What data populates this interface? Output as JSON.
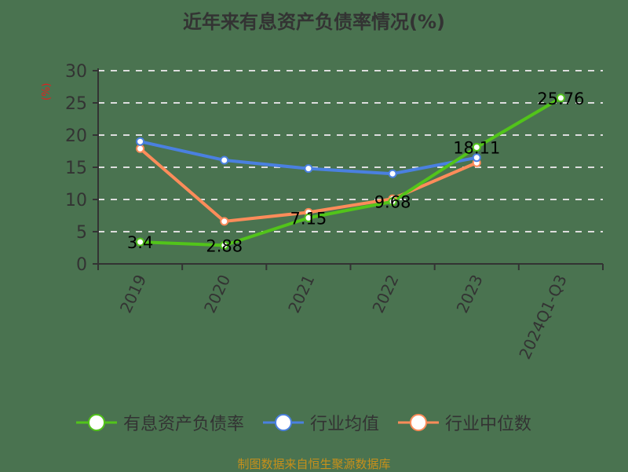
{
  "title": "近年来有息资产负债率情况(%)",
  "y_unit": "(%)",
  "legend": [
    {
      "label": "有息资产负债率",
      "color": "#52c41a"
    },
    {
      "label": "行业均值",
      "color": "#4a80e0"
    },
    {
      "label": "行业中位数",
      "color": "#ff8c5a"
    }
  ],
  "source": "制图数据来自恒生聚源数据库",
  "chart_data": {
    "type": "line",
    "title": "近年来有息资产负债率情况(%)",
    "xlabel": "",
    "ylabel": "(%)",
    "categories": [
      "2019",
      "2020",
      "2021",
      "2022",
      "2023",
      "2024Q1-Q3"
    ],
    "ylim": [
      0,
      30
    ],
    "yticks": [
      0,
      5,
      10,
      15,
      20,
      25,
      30
    ],
    "grid": "horizontal dashed",
    "legend_position": "bottom",
    "series": [
      {
        "name": "有息资产负债率",
        "color": "#52c41a",
        "values": [
          3.4,
          2.88,
          7.15,
          9.68,
          18.11,
          25.76
        ],
        "labels": [
          "3.4",
          "2.88",
          "7.15",
          "9.68",
          "18.11",
          "25.76"
        ]
      },
      {
        "name": "行业均值",
        "color": "#4a80e0",
        "values": [
          19.0,
          16.1,
          14.8,
          14.0,
          16.5,
          null
        ]
      },
      {
        "name": "行业中位数",
        "color": "#ff8c5a",
        "values": [
          17.9,
          6.6,
          8.0,
          10.1,
          15.7,
          null
        ]
      }
    ]
  }
}
